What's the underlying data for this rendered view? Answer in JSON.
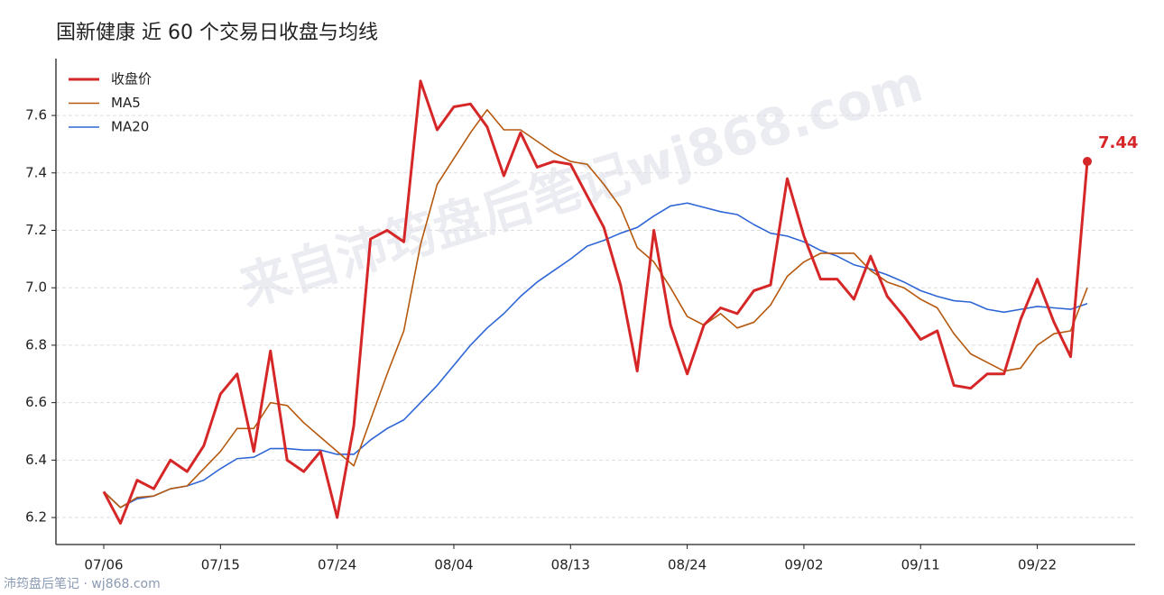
{
  "chart_data": {
    "type": "line",
    "title": "国新健康 近 60 个交易日收盘与均线",
    "watermark": "来自沛筠盘后笔记wj868.com",
    "footer": "沛筠盘后笔记 · wj868.com",
    "categories": [
      "07/06",
      null,
      null,
      null,
      null,
      null,
      null,
      "07/15",
      null,
      null,
      null,
      null,
      null,
      null,
      "07/24",
      null,
      null,
      null,
      null,
      null,
      null,
      "08/04",
      null,
      null,
      null,
      null,
      null,
      null,
      "08/13",
      null,
      null,
      null,
      null,
      null,
      null,
      "08/24",
      null,
      null,
      null,
      null,
      null,
      null,
      "09/02",
      null,
      null,
      null,
      null,
      null,
      null,
      "09/11",
      null,
      null,
      null,
      null,
      null,
      null,
      "09/22",
      null,
      null,
      null
    ],
    "series": [
      {
        "name": "收盘价",
        "color": "#d62728",
        "values": [
          6.29,
          6.18,
          6.33,
          6.3,
          6.4,
          6.36,
          6.45,
          6.63,
          6.7,
          6.43,
          6.78,
          6.4,
          6.36,
          6.43,
          6.2,
          6.52,
          7.17,
          7.2,
          7.16,
          7.72,
          7.55,
          7.63,
          7.64,
          7.56,
          7.39,
          7.54,
          7.42,
          7.44,
          7.43,
          7.32,
          7.21,
          7.01,
          6.71,
          7.2,
          6.87,
          6.7,
          6.87,
          6.93,
          6.91,
          6.99,
          7.01,
          7.38,
          7.18,
          7.03,
          7.03,
          6.96,
          7.11,
          6.97,
          6.9,
          6.82,
          6.85,
          6.66,
          6.65,
          6.7,
          6.7,
          6.89,
          7.03,
          6.88,
          6.76,
          7.44
        ]
      },
      {
        "name": "MA5",
        "color": "#b5590f",
        "values": [
          6.29,
          6.235,
          6.27,
          6.275,
          6.3,
          6.31,
          6.37,
          6.43,
          6.51,
          6.51,
          6.6,
          6.59,
          6.53,
          6.48,
          6.43,
          6.38,
          6.54,
          6.7,
          6.85,
          7.15,
          7.36,
          7.45,
          7.54,
          7.62,
          7.55,
          7.55,
          7.51,
          7.47,
          7.44,
          7.43,
          7.36,
          7.28,
          7.14,
          7.09,
          7.0,
          6.9,
          6.87,
          6.91,
          6.86,
          6.88,
          6.94,
          7.04,
          7.09,
          7.12,
          7.12,
          7.12,
          7.06,
          7.02,
          7.0,
          6.96,
          6.93,
          6.84,
          6.77,
          6.74,
          6.71,
          6.72,
          6.8,
          6.84,
          6.85,
          7.0
        ]
      },
      {
        "name": "MA20",
        "color": "#2f66d6",
        "values": [
          6.29,
          6.235,
          6.265,
          6.275,
          6.3,
          6.31,
          6.33,
          6.37,
          6.405,
          6.41,
          6.44,
          6.44,
          6.435,
          6.435,
          6.42,
          6.42,
          6.47,
          6.51,
          6.54,
          6.6,
          6.66,
          6.73,
          6.8,
          6.86,
          6.91,
          6.97,
          7.02,
          7.06,
          7.1,
          7.145,
          7.165,
          7.19,
          7.21,
          7.25,
          7.285,
          7.295,
          7.28,
          7.265,
          7.255,
          7.22,
          7.19,
          7.18,
          7.16,
          7.13,
          7.11,
          7.08,
          7.065,
          7.045,
          7.02,
          6.99,
          6.97,
          6.955,
          6.95,
          6.925,
          6.915,
          6.925,
          6.935,
          6.93,
          6.925,
          6.945
        ]
      }
    ],
    "ylim": [
      6.106,
      7.798
    ],
    "yticks": [
      6.2,
      6.4,
      6.6,
      6.8,
      {
        "value": 7,
        "label": "7.0"
      },
      7.2,
      7.4,
      7.6
    ],
    "grid": true,
    "legend": "upper-left"
  }
}
